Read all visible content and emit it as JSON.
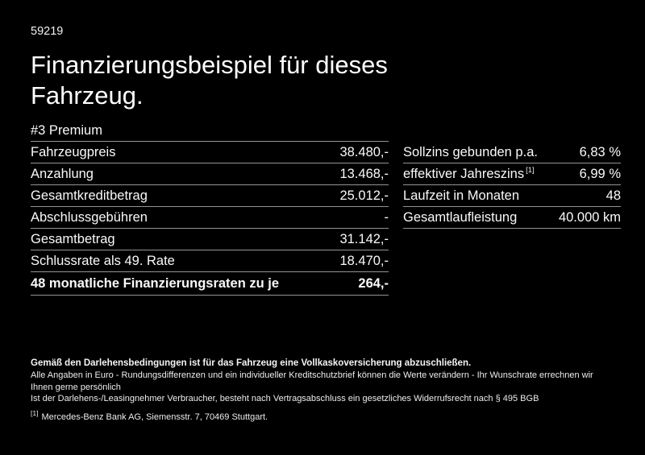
{
  "page": {
    "ref_number": "59219",
    "title_line1": "Finanzierungsbeispiel für dieses",
    "title_line2": "Fahrzeug."
  },
  "tables": {
    "left": {
      "header": "#3 Premium",
      "rows": [
        {
          "label": "Fahrzeugpreis",
          "value": "38.480,-"
        },
        {
          "label": "Anzahlung",
          "value": "13.468,-"
        },
        {
          "label": "Gesamtkreditbetrag",
          "value": "25.012,-"
        },
        {
          "label": "Abschlussgebühren",
          "value": "-"
        },
        {
          "label": "Gesamtbetrag",
          "value": "31.142,-"
        },
        {
          "label": "Schlussrate als 49. Rate",
          "value": "18.470,-"
        },
        {
          "label": "48 monatliche Finanzierungsraten zu je",
          "value": "264,-"
        }
      ]
    },
    "right": {
      "rows": [
        {
          "label": "Sollzins gebunden p.a.",
          "value": "6,83 %"
        },
        {
          "label": "effektiver Jahreszins",
          "sup": "[1]",
          "value": "6,99 %"
        },
        {
          "label": "Laufzeit in Monaten",
          "value": "48"
        },
        {
          "label": "Gesamtlaufleistung",
          "value": "40.000 km"
        }
      ]
    }
  },
  "disclaimer": {
    "bold_line": "Gemäß den Darlehensbedingungen ist für das Fahrzeug eine Vollkaskoversicherung abzuschließen.",
    "line2": "Alle Angaben in Euro - Rundungsdifferenzen und ein individueller Kreditschutzbrief können die Werte verändern - Ihr Wunschrate errechnen wir Ihnen gerne persönlich",
    "line3": "Ist der Darlehens-/Leasingnehmer Verbraucher, besteht nach Vertragsabschluss ein gesetzliches Widerrufsrecht nach § 495 BGB",
    "footnote_marker": "[1]",
    "footnote_text": "Mercedes-Benz Bank AG, Siemensstr. 7, 70469 Stuttgart."
  },
  "colors": {
    "background": "#000000",
    "text": "#ffffff",
    "divider": "#949494"
  }
}
